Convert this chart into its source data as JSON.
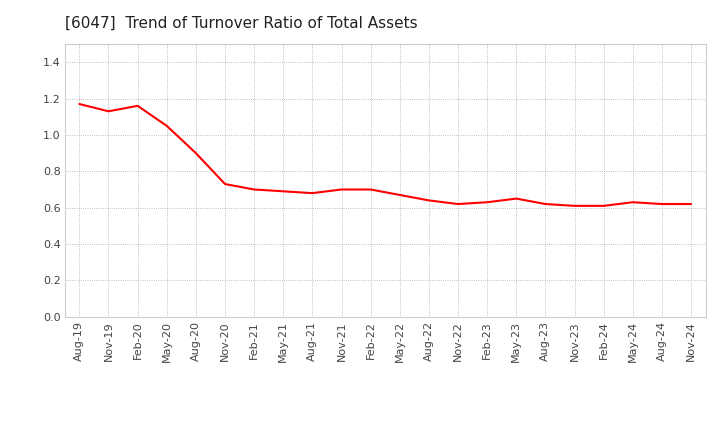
{
  "title": "[6047]  Trend of Turnover Ratio of Total Assets",
  "x_labels": [
    "Aug-19",
    "Nov-19",
    "Feb-20",
    "May-20",
    "Aug-20",
    "Nov-20",
    "Feb-21",
    "May-21",
    "Aug-21",
    "Nov-21",
    "Feb-22",
    "May-22",
    "Aug-22",
    "Nov-22",
    "Feb-23",
    "May-23",
    "Aug-23",
    "Nov-23",
    "Feb-24",
    "May-24",
    "Aug-24",
    "Nov-24"
  ],
  "y_values": [
    1.17,
    1.13,
    1.16,
    1.05,
    0.9,
    0.73,
    0.7,
    0.69,
    0.68,
    0.7,
    0.7,
    0.67,
    0.64,
    0.62,
    0.63,
    0.65,
    0.62,
    0.61,
    0.61,
    0.63,
    0.62,
    0.62
  ],
  "line_color": "#ff0000",
  "line_width": 1.5,
  "ylim": [
    0.0,
    1.5
  ],
  "yticks": [
    0.0,
    0.2,
    0.4,
    0.6,
    0.8,
    1.0,
    1.2,
    1.4
  ],
  "background_color": "#ffffff",
  "plot_area_color": "#ffffff",
  "grid_color": "#aaaaaa",
  "title_fontsize": 11,
  "tick_fontsize": 8,
  "title_color": "#222222"
}
